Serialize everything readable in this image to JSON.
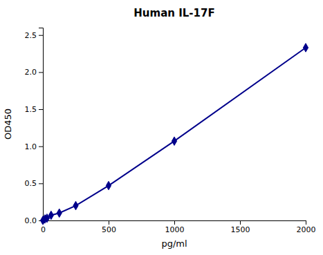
{
  "chart_data": {
    "type": "line",
    "title": "Human IL-17F",
    "xlabel": "pg/ml",
    "ylabel": "OD450",
    "x": [
      0,
      15.6,
      31.25,
      62.5,
      125,
      250,
      500,
      1000,
      2000
    ],
    "values": [
      0.0,
      0.02,
      0.03,
      0.07,
      0.1,
      0.2,
      0.47,
      1.07,
      2.33
    ],
    "color": "#00008B",
    "marker": "diamond",
    "xlim": [
      0,
      2000
    ],
    "ylim": [
      0,
      2.6
    ],
    "xticks": [
      0,
      500,
      1000,
      1500,
      2000
    ],
    "yticks": [
      {
        "value": 0.0,
        "label": "0.0"
      },
      0.5,
      {
        "value": 1.0,
        "label": "1.0"
      },
      1.5,
      {
        "value": 2.0,
        "label": "2.0"
      },
      2.5
    ],
    "grid": false
  }
}
